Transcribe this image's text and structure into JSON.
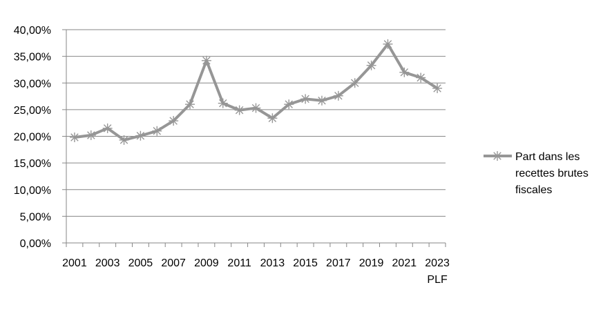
{
  "chart_data": {
    "type": "line",
    "x": [
      "2001",
      "2002",
      "2003",
      "2004",
      "2005",
      "2006",
      "2007",
      "2008",
      "2009",
      "2010",
      "2011",
      "2012",
      "2013",
      "2014",
      "2015",
      "2016",
      "2017",
      "2018",
      "2019",
      "2020",
      "2021",
      "2022",
      "2023 PLF"
    ],
    "x_tick_labels": [
      "2001",
      "2003",
      "2005",
      "2007",
      "2009",
      "2011",
      "2013",
      "2015",
      "2017",
      "2019",
      "2021",
      "2023"
    ],
    "x_tick_sublabel": "PLF",
    "series": [
      {
        "name": "Part dans les recettes brutes fiscales",
        "legend_lines": [
          "Part dans les",
          "recettes brutes",
          "fiscales"
        ],
        "color": "#969696",
        "marker": "asterisk",
        "values": [
          19.8,
          20.2,
          21.5,
          19.3,
          20.1,
          21.0,
          22.9,
          26.0,
          34.2,
          26.2,
          24.9,
          25.3,
          23.4,
          26.0,
          27.0,
          26.7,
          27.6,
          30.0,
          33.3,
          37.3,
          32.0,
          31.0,
          29.0
        ]
      }
    ],
    "y_tick_labels": [
      "0,00%",
      "5,00%",
      "10,00%",
      "15,00%",
      "20,00%",
      "25,00%",
      "30,00%",
      "35,00%",
      "40,00%"
    ],
    "ylim": [
      0,
      40
    ],
    "y_step": 5,
    "grid": "horizontal",
    "gridline_color": "#868686",
    "legend_position": "right"
  }
}
